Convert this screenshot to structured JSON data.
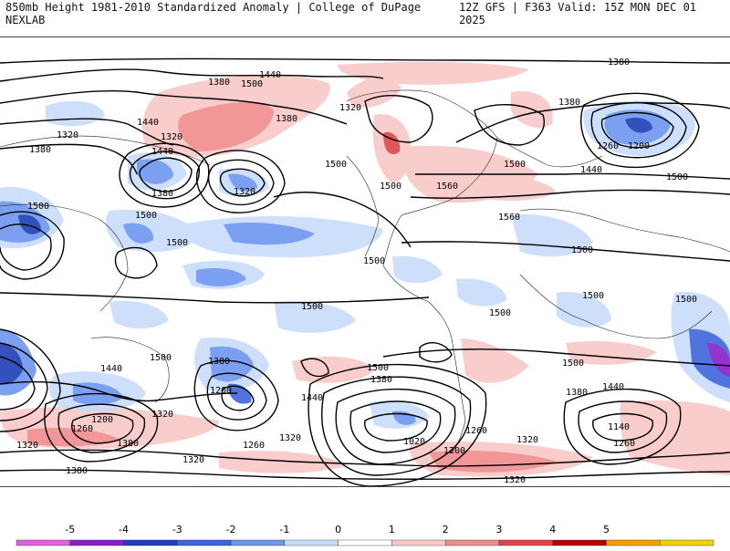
{
  "header": {
    "left_title": "850mb Height 1981-2010 Standardized Anomaly | College of DuPage NEXLAB",
    "right_title": "12Z GFS | F363 Valid: 15Z MON DEC 01 2025"
  },
  "map": {
    "contour_labels": [
      "1440",
      "1500",
      "1380",
      "1320",
      "1440",
      "1380",
      "1320",
      "1440",
      "1500",
      "1380",
      "1320",
      "1500",
      "1500",
      "1380",
      "1380",
      "1500",
      "1560",
      "1560",
      "1500",
      "1320",
      "1380",
      "1500",
      "1260",
      "1200",
      "1440",
      "1500",
      "1500",
      "1500",
      "1500",
      "1500",
      "1500",
      "1500",
      "1500",
      "1380",
      "1260",
      "1440",
      "1200",
      "1320",
      "1260",
      "1380",
      "1320",
      "1380",
      "1320",
      "1500",
      "1380",
      "1440",
      "1320",
      "1260",
      "1020",
      "1200",
      "1320",
      "1260",
      "1440",
      "1380",
      "1140",
      "1260",
      "1320",
      "1500"
    ]
  },
  "colorbar": {
    "ticks": [
      "-5",
      "-4",
      "-3",
      "-2",
      "-1",
      "0",
      "1",
      "2",
      "3",
      "4",
      "5"
    ],
    "colors": [
      "#e060e0",
      "#8a1ec8",
      "#1f3fb4",
      "#3c64dc",
      "#6e96f0",
      "#c8dcfa",
      "#ffffff",
      "#fac8c8",
      "#f08c8c",
      "#dc4646",
      "#b40000",
      "#f0a000",
      "#f0d200"
    ]
  }
}
